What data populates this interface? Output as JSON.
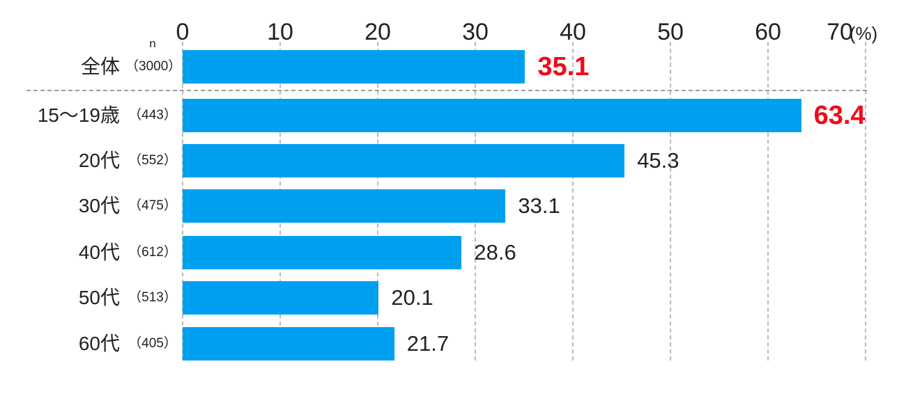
{
  "chart_data": {
    "type": "bar",
    "orientation": "horizontal",
    "unit_label": "(%)",
    "n_header": "n",
    "axis_ticks": [
      0,
      10,
      20,
      30,
      40,
      50,
      60,
      70
    ],
    "xlim": [
      0,
      70
    ],
    "grid": "dashed-vertical",
    "legend_position": "none",
    "categories": [
      "全体",
      "15～19歳",
      "20代",
      "30代",
      "40代",
      "50代",
      "60代"
    ],
    "n_values": [
      "（3000）",
      "（443）",
      "（552）",
      "（475）",
      "（612）",
      "（513）",
      "（405）"
    ],
    "values": [
      35.1,
      63.4,
      45.3,
      33.1,
      28.6,
      20.1,
      21.7
    ],
    "value_labels": [
      "35.1",
      "63.4",
      "45.3",
      "33.1",
      "28.6",
      "20.1",
      "21.7"
    ],
    "highlighted": [
      true,
      true,
      false,
      false,
      false,
      false,
      false
    ],
    "separator_after_first_row": true,
    "colors": {
      "bar": "#00a0f0",
      "hl": "#f40818",
      "text": "#222222",
      "grid": "#bbbbbb",
      "sep": "#9b9b9b"
    }
  }
}
